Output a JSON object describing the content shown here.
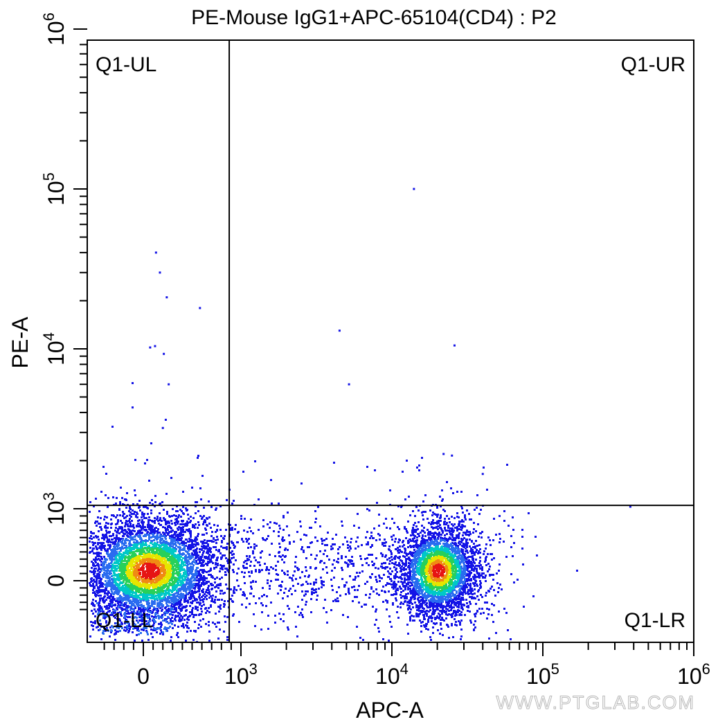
{
  "chart_data": {
    "type": "scatter",
    "subtype": "flow-cytometry density dot plot",
    "title": "PE-Mouse IgG1+APC-65104(CD4) : P2",
    "xlabel": "APC-A",
    "ylabel": "PE-A",
    "x_scale": "biexponential (log above 10^3)",
    "y_scale": "biexponential (log above 10^3)",
    "xlim": [
      -400,
      1000000
    ],
    "ylim": [
      -400,
      1000000
    ],
    "x_ticks": [
      {
        "base": "0",
        "exp": "",
        "value": 0
      },
      {
        "base": "10",
        "exp": "3",
        "value": 1000
      },
      {
        "base": "10",
        "exp": "4",
        "value": 10000
      },
      {
        "base": "10",
        "exp": "5",
        "value": 100000
      },
      {
        "base": "10",
        "exp": "6",
        "value": 1000000
      }
    ],
    "y_ticks": [
      {
        "base": "0",
        "exp": "",
        "value": 0
      },
      {
        "base": "10",
        "exp": "3",
        "value": 1000
      },
      {
        "base": "10",
        "exp": "4",
        "value": 10000
      },
      {
        "base": "10",
        "exp": "5",
        "value": 100000
      },
      {
        "base": "10",
        "exp": "6",
        "value": 1000000
      }
    ],
    "quadrant_gate": {
      "x": 880,
      "y": 1050
    },
    "quadrants": [
      {
        "label": "Q1-UL",
        "position": "top-left"
      },
      {
        "label": "Q1-UR",
        "position": "top-right"
      },
      {
        "label": "Q1-LL",
        "position": "bottom-left"
      },
      {
        "label": "Q1-LR",
        "position": "bottom-right"
      }
    ],
    "populations": [
      {
        "name": "",
        "center_x": 50,
        "center_y": 150,
        "density": "high",
        "quadrant": "Q1-LL"
      },
      {
        "name": "",
        "center_x": 20000,
        "center_y": 150,
        "density": "high",
        "quadrant": "Q1-LR"
      }
    ],
    "outlier_points": [
      {
        "x": 14000,
        "y": 100000
      },
      {
        "x": 130,
        "y": 40000
      },
      {
        "x": 170,
        "y": 30000
      },
      {
        "x": 240,
        "y": 21000
      },
      {
        "x": 580,
        "y": 18000
      },
      {
        "x": 4500,
        "y": 13000
      },
      {
        "x": 26000,
        "y": 10500
      },
      {
        "x": 70,
        "y": 10200
      },
      {
        "x": 120,
        "y": 10400
      },
      {
        "x": 210,
        "y": 9300
      },
      {
        "x": 5200,
        "y": 6000
      },
      {
        "x": 260,
        "y": 6000
      },
      {
        "x": -110,
        "y": 4300
      },
      {
        "x": 230,
        "y": 3600
      },
      {
        "x": 200,
        "y": 3200
      },
      {
        "x": 22000,
        "y": 2200
      },
      {
        "x": 25000,
        "y": 2150
      },
      {
        "x": 40000,
        "y": 1650
      },
      {
        "x": 380000,
        "y": 1030
      }
    ],
    "colors": {
      "low_density": "#1414e6",
      "mid_density": "#00c8c8",
      "high_density": "#e6e600",
      "peak_density": "#e61414",
      "gate_lines": "#000000"
    }
  },
  "watermark": "WWW.PTGLAB.COM"
}
